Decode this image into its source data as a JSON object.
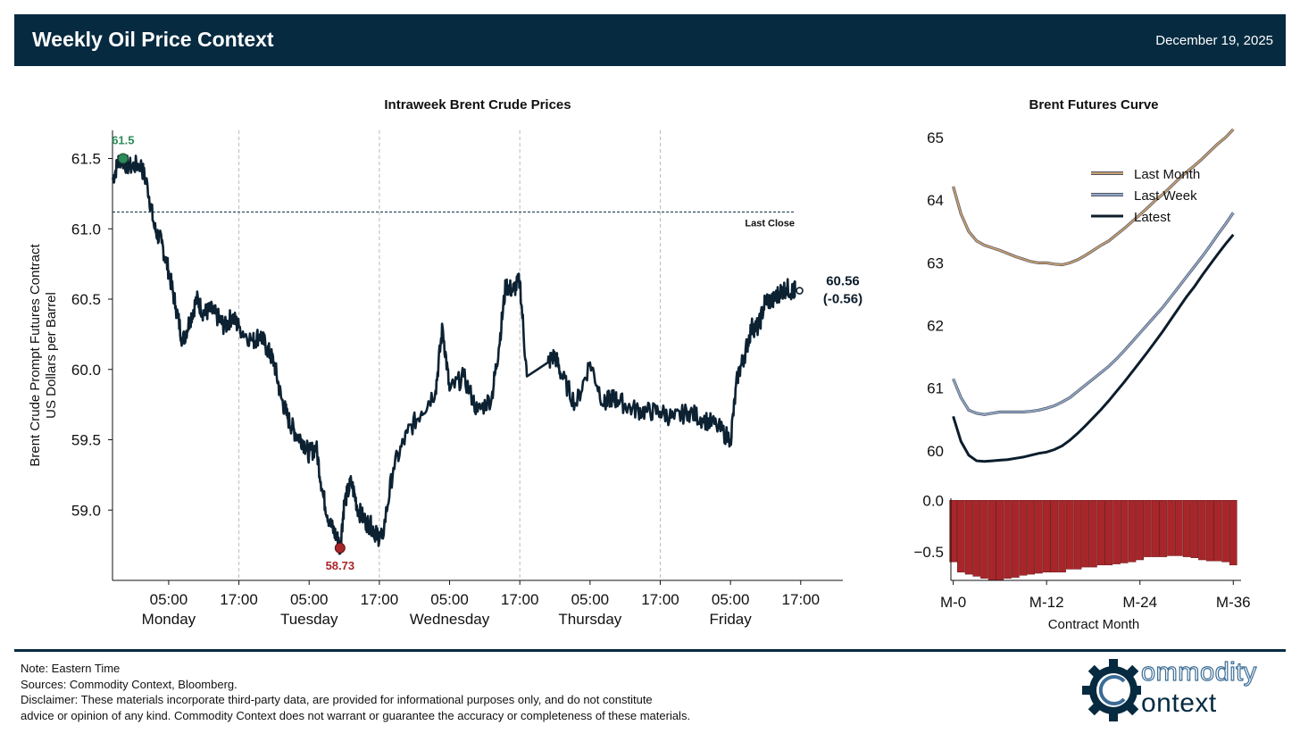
{
  "header": {
    "title": "Weekly Oil Price Context",
    "date": "December 19, 2025"
  },
  "chart_data": [
    {
      "type": "line",
      "title": "Intraweek Brent Crude Prices",
      "ylabel_line1": "Brent Crude Prompt Futures Contract",
      "ylabel_line2": "US Dollars per Barrel",
      "ylim": [
        58.5,
        61.7
      ],
      "yticks": [
        59.0,
        59.5,
        60.0,
        60.5,
        61.0,
        61.5
      ],
      "ytick_labels": [
        "59.0",
        "59.5",
        "60.0",
        "60.5",
        "61.0",
        "61.5"
      ],
      "xlim": [
        0,
        5.2
      ],
      "xticks": [
        {
          "pos": 0.4,
          "l1": "05:00",
          "l2": "Monday"
        },
        {
          "pos": 0.9,
          "l1": "17:00",
          "l2": ""
        },
        {
          "pos": 1.4,
          "l1": "05:00",
          "l2": "Tuesday"
        },
        {
          "pos": 1.9,
          "l1": "17:00",
          "l2": ""
        },
        {
          "pos": 2.4,
          "l1": "05:00",
          "l2": "Wednesday"
        },
        {
          "pos": 2.9,
          "l1": "17:00",
          "l2": ""
        },
        {
          "pos": 3.4,
          "l1": "05:00",
          "l2": "Thursday"
        },
        {
          "pos": 3.9,
          "l1": "17:00",
          "l2": ""
        },
        {
          "pos": 4.4,
          "l1": "05:00",
          "l2": "Friday"
        },
        {
          "pos": 4.9,
          "l1": "17:00",
          "l2": ""
        }
      ],
      "vlines": [
        0.9,
        1.9,
        2.9,
        3.9
      ],
      "last_close": 61.12,
      "last_close_label": "Last Close",
      "high": {
        "x": 0.05,
        "y": 61.5,
        "label": "61.5"
      },
      "low": {
        "x": 1.62,
        "y": 58.73,
        "label": "58.73"
      },
      "last": {
        "x": 4.86,
        "y": 60.56,
        "label": "60.56",
        "change": "(-0.56)"
      },
      "series": [
        {
          "name": "Brent Crude",
          "x": [
            0.0,
            0.05,
            0.12,
            0.2,
            0.25,
            0.3,
            0.35,
            0.4,
            0.45,
            0.5,
            0.55,
            0.6,
            0.65,
            0.7,
            0.75,
            0.8,
            0.85,
            0.9,
            1.0,
            1.05,
            1.1,
            1.15,
            1.2,
            1.25,
            1.3,
            1.35,
            1.4,
            1.45,
            1.5,
            1.55,
            1.6,
            1.62,
            1.65,
            1.7,
            1.75,
            1.8,
            1.85,
            1.88,
            1.92,
            2.0,
            2.1,
            2.2,
            2.3,
            2.35,
            2.4,
            2.5,
            2.6,
            2.7,
            2.75,
            2.8,
            2.85,
            2.9,
            2.95,
            3.1,
            3.15,
            3.2,
            3.3,
            3.4,
            3.5,
            3.55,
            3.6,
            3.7,
            3.8,
            3.9,
            4.0,
            4.1,
            4.2,
            4.3,
            4.4,
            4.45,
            4.5,
            4.55,
            4.6,
            4.65,
            4.7,
            4.75,
            4.8,
            4.85,
            4.86
          ],
          "y": [
            61.35,
            61.5,
            61.44,
            61.46,
            61.3,
            61.0,
            60.9,
            60.7,
            60.45,
            60.2,
            60.35,
            60.5,
            60.4,
            60.42,
            60.37,
            60.3,
            60.38,
            60.3,
            60.2,
            60.25,
            60.15,
            60.05,
            59.8,
            59.65,
            59.55,
            59.5,
            59.4,
            59.45,
            59.1,
            58.9,
            58.8,
            58.73,
            59.05,
            59.2,
            59.0,
            58.92,
            58.88,
            58.82,
            58.8,
            59.3,
            59.55,
            59.7,
            59.85,
            60.3,
            59.85,
            59.95,
            59.7,
            59.8,
            60.15,
            60.6,
            60.56,
            60.63,
            59.95,
            60.05,
            60.1,
            59.95,
            59.75,
            60.05,
            59.75,
            59.8,
            59.78,
            59.72,
            59.7,
            59.7,
            59.65,
            59.7,
            59.65,
            59.6,
            59.5,
            59.95,
            60.1,
            60.3,
            60.3,
            60.5,
            60.48,
            60.55,
            60.58,
            60.55,
            60.56
          ]
        }
      ]
    },
    {
      "type": "line",
      "title": "Brent Futures Curve",
      "ylim": [
        59.5,
        65.2
      ],
      "yticks": [
        60,
        61,
        62,
        63,
        64,
        65
      ],
      "ytick_labels": [
        "60",
        "61",
        "62",
        "63",
        "64",
        "65"
      ],
      "xlim": [
        -0.3,
        37
      ],
      "x": [
        0,
        1,
        2,
        3,
        4,
        5,
        6,
        7,
        8,
        9,
        10,
        11,
        12,
        13,
        14,
        15,
        16,
        17,
        18,
        19,
        20,
        21,
        22,
        23,
        24,
        25,
        26,
        27,
        28,
        29,
        30,
        31,
        32,
        33,
        34,
        35,
        36
      ],
      "series": [
        {
          "name": "Last Month",
          "color": "#c9a16e",
          "values": [
            64.22,
            63.78,
            63.5,
            63.35,
            63.28,
            63.24,
            63.2,
            63.15,
            63.1,
            63.06,
            63.02,
            63.0,
            63.0,
            62.98,
            62.97,
            63.0,
            63.05,
            63.12,
            63.2,
            63.28,
            63.35,
            63.45,
            63.55,
            63.66,
            63.77,
            63.88,
            64.0,
            64.1,
            64.22,
            64.34,
            64.45,
            64.55,
            64.66,
            64.78,
            64.9,
            65.0,
            65.13
          ]
        },
        {
          "name": "Last Week",
          "color": "#8ea9c8",
          "values": [
            61.15,
            60.85,
            60.65,
            60.6,
            60.58,
            60.6,
            60.62,
            60.62,
            60.62,
            60.62,
            60.63,
            60.65,
            60.68,
            60.72,
            60.78,
            60.85,
            60.95,
            61.05,
            61.15,
            61.25,
            61.35,
            61.47,
            61.6,
            61.74,
            61.88,
            62.02,
            62.16,
            62.3,
            62.46,
            62.62,
            62.78,
            62.94,
            63.1,
            63.27,
            63.45,
            63.62,
            63.8
          ]
        },
        {
          "name": "Latest",
          "color": "#0c1d2c",
          "values": [
            60.55,
            60.15,
            59.93,
            59.84,
            59.83,
            59.84,
            59.85,
            59.86,
            59.88,
            59.9,
            59.93,
            59.96,
            59.98,
            60.02,
            60.08,
            60.17,
            60.28,
            60.4,
            60.53,
            60.66,
            60.8,
            60.95,
            61.1,
            61.26,
            61.42,
            61.58,
            61.75,
            61.92,
            62.1,
            62.28,
            62.46,
            62.62,
            62.8,
            62.97,
            63.14,
            63.3,
            63.45
          ]
        }
      ],
      "legend": [
        "Last Month",
        "Last Week",
        "Latest"
      ]
    },
    {
      "type": "bar",
      "title": "",
      "xlabel": "Contract Month",
      "ylim": [
        -0.78,
        0.02
      ],
      "yticks": [
        0.0,
        -0.5
      ],
      "ytick_labels": [
        "0.0",
        "−0.5"
      ],
      "categories": [
        "M-0",
        "M-1",
        "M-2",
        "M-3",
        "M-4",
        "M-5",
        "M-6",
        "M-7",
        "M-8",
        "M-9",
        "M-10",
        "M-11",
        "M-12",
        "M-13",
        "M-14",
        "M-15",
        "M-16",
        "M-17",
        "M-18",
        "M-19",
        "M-20",
        "M-21",
        "M-22",
        "M-23",
        "M-24",
        "M-25",
        "M-26",
        "M-27",
        "M-28",
        "M-29",
        "M-30",
        "M-31",
        "M-32",
        "M-33",
        "M-34",
        "M-35",
        "M-36"
      ],
      "xtick_labels": [
        {
          "pos": 0,
          "label": "M-0"
        },
        {
          "pos": 12,
          "label": "M-12"
        },
        {
          "pos": 24,
          "label": "M-24"
        },
        {
          "pos": 36,
          "label": "M-36"
        }
      ],
      "color": "#a8262a",
      "values": [
        -0.6,
        -0.7,
        -0.72,
        -0.74,
        -0.76,
        -0.78,
        -0.78,
        -0.76,
        -0.75,
        -0.73,
        -0.72,
        -0.71,
        -0.7,
        -0.7,
        -0.7,
        -0.67,
        -0.67,
        -0.65,
        -0.65,
        -0.63,
        -0.63,
        -0.62,
        -0.61,
        -0.6,
        -0.58,
        -0.55,
        -0.55,
        -0.55,
        -0.54,
        -0.54,
        -0.55,
        -0.56,
        -0.58,
        -0.59,
        -0.59,
        -0.6,
        -0.63
      ]
    }
  ],
  "footer": {
    "line1": "Note: Eastern Time",
    "line2": "Sources: Commodity Context, Bloomberg.",
    "line3": "Disclaimer: These materials incorporate third-party data, are provided for informational purposes only, and do not constitute",
    "line4": "advice or opinion of any kind. Commodity Context does not warrant or guarantee the accuracy or completeness of these materials."
  },
  "logo": {
    "word1": "ommodity",
    "word2": "ontext"
  },
  "colors": {
    "navy": "#062a40",
    "green": "#2d8a5a",
    "red": "#a8262a",
    "logo_blue": "#3a6c95"
  }
}
